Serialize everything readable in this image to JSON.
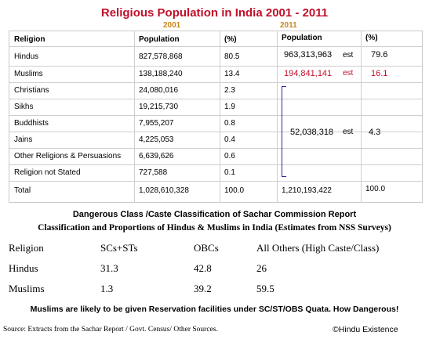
{
  "header": {
    "title": "Religious Population in India",
    "title_years": "2001  - 2011",
    "year_2001": "2001",
    "year_2011": "2011"
  },
  "population_table": {
    "columns": [
      "Religion",
      "Population",
      "(%)",
      "Population",
      "(%)"
    ],
    "rows": [
      {
        "religion": "Hindus",
        "pop2001": "827,578,868",
        "pct2001": "80.5",
        "pop2011": "963,313,963",
        "est": "est",
        "pct2011": "79.6"
      },
      {
        "religion": "Muslims",
        "pop2001": "138,188,240",
        "pct2001": "13.4",
        "pop2011": "194,841,141",
        "est": "est",
        "pct2011": "16.1"
      },
      {
        "religion": "Christians",
        "pop2001": "24,080,016",
        "pct2001": "2.3"
      },
      {
        "religion": "Sikhs",
        "pop2001": "19,215,730",
        "pct2001": "1.9"
      },
      {
        "religion": "Buddhists",
        "pop2001": "7,955,207",
        "pct2001": "0.8"
      },
      {
        "religion": "Jains",
        "pop2001": "4,225,053",
        "pct2001": "0.4"
      },
      {
        "religion": "Other Religions & Persuasions",
        "pop2001": "6,639,626",
        "pct2001": "0.6"
      },
      {
        "religion": "Religion not Stated",
        "pop2001": "727,588",
        "pct2001": "0.1"
      },
      {
        "religion": "Total",
        "pop2001": "1,028,610,328",
        "pct2001": "100.0",
        "pop2011": "1,210,193,422",
        "pct2011": "100.0"
      }
    ],
    "others_2011": {
      "pop": "52,038,318",
      "est": "est",
      "pct": "4.3"
    }
  },
  "sachar": {
    "title": "Dangerous Class /Caste Classification of Sachar Commission Report",
    "subtitle": "Classification and Proportions of Hindus & Muslims in India (Estimates from NSS Surveys)",
    "columns": [
      "Religion",
      "SCs+STs",
      "OBCs",
      "All Others (High Caste/Class)"
    ],
    "rows": [
      {
        "religion": "Hindus",
        "sc_st": "31.3",
        "obc": "42.8",
        "others": "26"
      },
      {
        "religion": "Muslims",
        "sc_st": "1.3",
        "obc": "39.2",
        "others": "59.5"
      }
    ]
  },
  "footer": {
    "warning": "Muslims are likely to be given Reservation facilities under SC/ST/OBS Quata. How Dangerous!",
    "source": "Source: Extracts from the Sachar Report / Govt. Census/ Other Sources.",
    "copyright": "©Hindu Existence"
  },
  "colors": {
    "accent_red": "#c0102a",
    "year_gold": "#c8861a",
    "bracket_blue": "#2a2aa0"
  }
}
